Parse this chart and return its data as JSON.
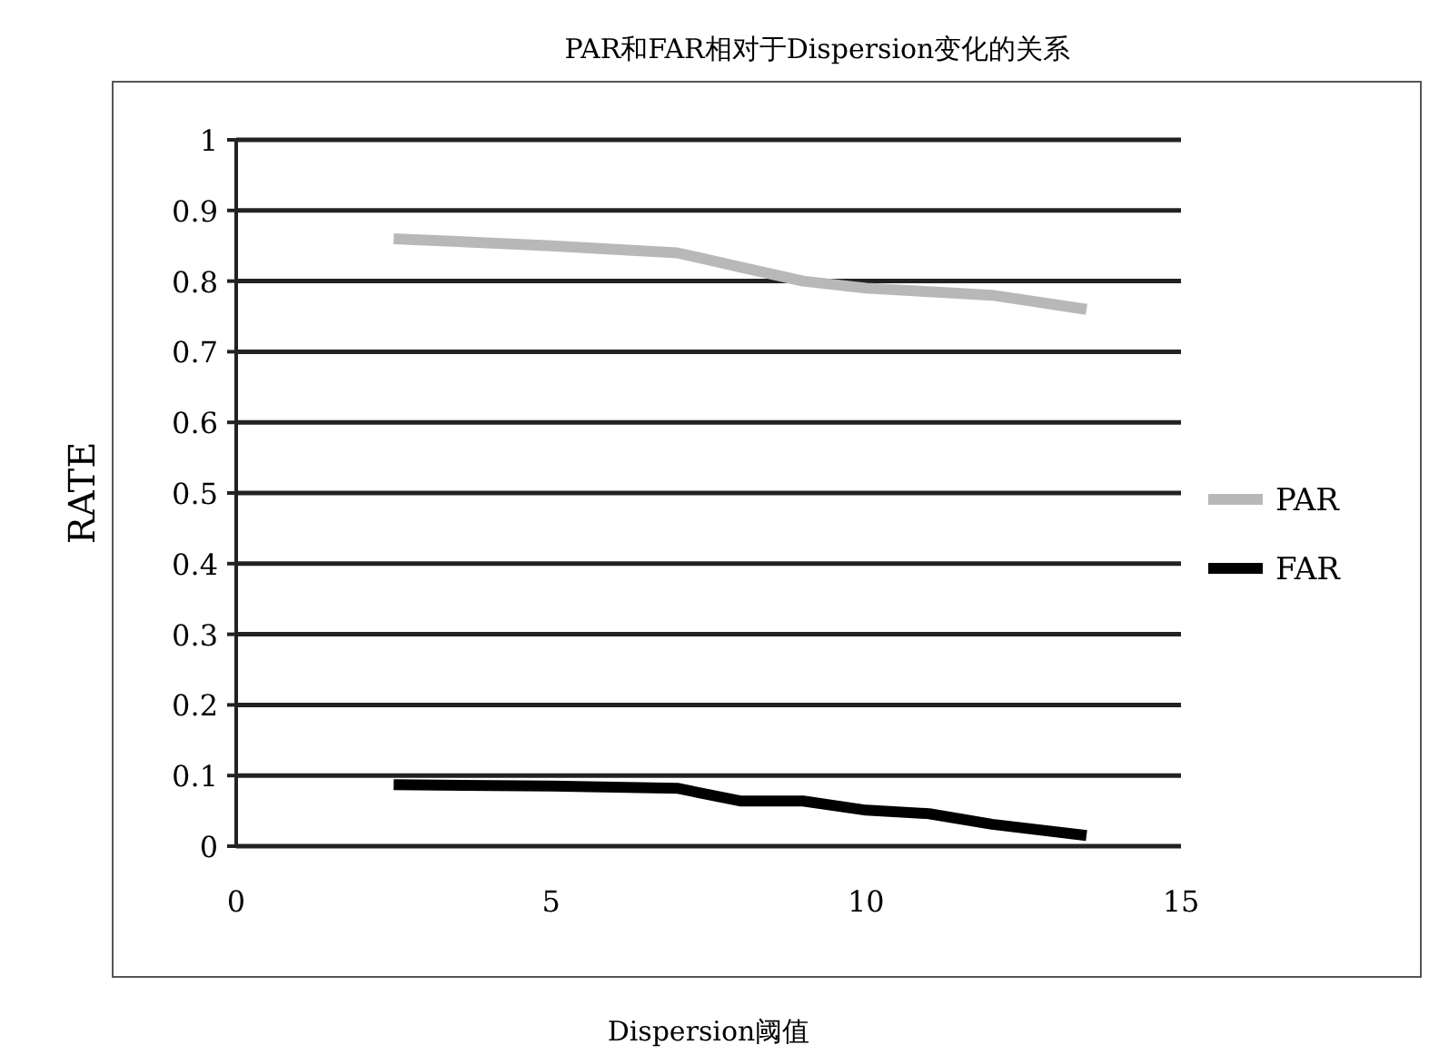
{
  "chart_data": {
    "type": "line",
    "title": "PAR和FAR相对于Dispersion变化的关系",
    "xlabel": "Dispersion阈值",
    "ylabel": "RATE",
    "series": [
      {
        "name": "PAR",
        "color": "#b8b8b8",
        "x": [
          2.5,
          5,
          7,
          8,
          9,
          10,
          11,
          12,
          13.5
        ],
        "values": [
          0.86,
          0.85,
          0.84,
          0.82,
          0.8,
          0.79,
          0.785,
          0.78,
          0.76
        ]
      },
      {
        "name": "FAR",
        "color": "#000000",
        "x": [
          2.5,
          5,
          7,
          8,
          9,
          10,
          11,
          12,
          13.5
        ],
        "values": [
          0.087,
          0.085,
          0.082,
          0.064,
          0.064,
          0.051,
          0.046,
          0.031,
          0.015
        ]
      }
    ],
    "xlim": [
      0,
      15
    ],
    "xticks": [
      0,
      5,
      10,
      15
    ],
    "ylim": [
      0,
      1
    ],
    "yticks": [
      0,
      0.1,
      0.2,
      0.3,
      0.4,
      0.5,
      0.6,
      0.7,
      0.8,
      0.9,
      1
    ],
    "grid": "y",
    "legend": "right",
    "marker": "none",
    "line_style": "solid"
  }
}
